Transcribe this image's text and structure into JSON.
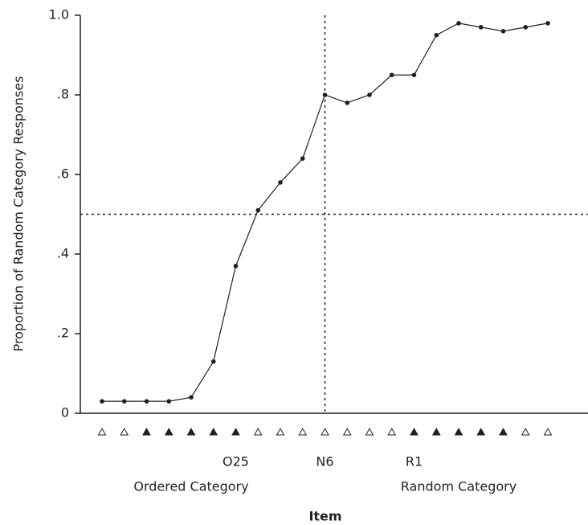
{
  "chart_data": {
    "type": "line",
    "ylabel": "Proportion of Random Category Responses",
    "xlabel": "Item",
    "group_labels": [
      "Ordered Category",
      "Random Category"
    ],
    "categories": [
      null,
      null,
      null,
      null,
      null,
      null,
      "O25",
      null,
      null,
      null,
      "N6",
      null,
      null,
      null,
      "R1",
      null,
      null,
      null,
      null,
      null,
      null
    ],
    "markers": [
      "open",
      "open",
      "filled",
      "filled",
      "filled",
      "filled",
      "filled",
      "open",
      "open",
      "open",
      "open",
      "open",
      "open",
      "open",
      "filled",
      "filled",
      "filled",
      "filled",
      "filled",
      "open",
      "open"
    ],
    "series": [
      {
        "color": "#231f20",
        "values": [
          0.03,
          0.03,
          0.03,
          0.03,
          0.04,
          0.13,
          0.37,
          0.51,
          0.58,
          0.64,
          0.8,
          0.78,
          0.8,
          0.85,
          0.85,
          0.95,
          0.98,
          0.97,
          0.96,
          0.97,
          0.98
        ]
      }
    ],
    "ylim": [
      0,
      1
    ],
    "yticks": [
      0,
      {
        "value": 0.2,
        "label": ".2"
      },
      {
        "value": 0.4,
        "label": ".4"
      },
      {
        "value": 0.6,
        "label": ".6"
      },
      {
        "value": 0.8,
        "label": ".8"
      },
      {
        "value": 1,
        "label": "1.0"
      }
    ],
    "hline": 0.5,
    "vline": "N6"
  }
}
